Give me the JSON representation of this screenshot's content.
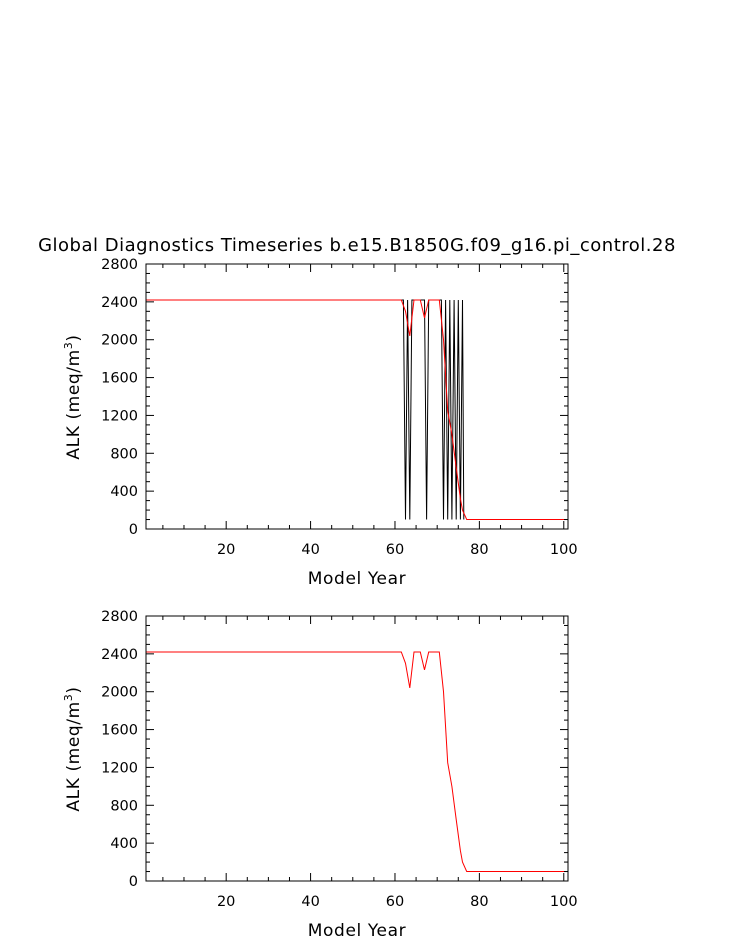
{
  "colors": {
    "background": "#ffffff",
    "axis": "#000000",
    "series_black": "#000000",
    "series_red": "#ff0000"
  },
  "chart_data": [
    {
      "type": "line",
      "title": "Global Diagnostics Timeseries b.e15.B1850G.f09_g16.pi_control.28",
      "xlabel": "Model Year",
      "ylabel": "ALK (meq/m",
      "ylabel_sup": "3",
      "ylabel_end": ")",
      "xlim": [
        1,
        101
      ],
      "ylim": [
        0,
        2800
      ],
      "xticks": [
        20,
        40,
        60,
        80,
        100
      ],
      "yticks": [
        0,
        400,
        800,
        1200,
        1600,
        2000,
        2400,
        2800
      ],
      "x_minor_step": 5,
      "y_minor_step": 100,
      "grid": false,
      "series": [
        {
          "color": "#000000",
          "x": [
            1,
            61.5,
            62,
            62.5,
            63,
            63.5,
            64,
            64.5,
            65,
            66,
            66.5,
            67,
            67.5,
            68,
            71,
            71.5,
            72,
            72.5,
            73,
            73.5,
            74,
            74.5,
            75,
            75.5,
            76,
            76.3
          ],
          "y": [
            2420,
            2420,
            2420,
            100,
            2420,
            100,
            2420,
            2420,
            2420,
            2420,
            2420,
            2420,
            100,
            2420,
            2420,
            100,
            2420,
            100,
            2420,
            100,
            2420,
            100,
            2420,
            100,
            2420,
            100
          ]
        },
        {
          "color": "#ff0000",
          "x": [
            1,
            61.5,
            62.5,
            63.5,
            64.5,
            66,
            67,
            68,
            69,
            70.5,
            71.5,
            72.5,
            73.5,
            74.5,
            75.5,
            76,
            77,
            100.5
          ],
          "y": [
            2420,
            2420,
            2300,
            2040,
            2420,
            2420,
            2230,
            2420,
            2420,
            2420,
            2000,
            1250,
            1000,
            650,
            320,
            200,
            100,
            100
          ]
        }
      ]
    },
    {
      "type": "line",
      "title": "",
      "xlabel": "Model Year",
      "ylabel": "ALK (meq/m",
      "ylabel_sup": "3",
      "ylabel_end": ")",
      "xlim": [
        1,
        101
      ],
      "ylim": [
        0,
        2800
      ],
      "xticks": [
        20,
        40,
        60,
        80,
        100
      ],
      "yticks": [
        0,
        400,
        800,
        1200,
        1600,
        2000,
        2400,
        2800
      ],
      "x_minor_step": 5,
      "y_minor_step": 100,
      "grid": false,
      "series": [
        {
          "color": "#ff0000",
          "x": [
            1,
            61.5,
            62.5,
            63.5,
            64.5,
            66,
            67,
            68,
            69,
            70.5,
            71.5,
            72.5,
            73.5,
            74.5,
            75.5,
            76,
            77,
            100.5
          ],
          "y": [
            2420,
            2420,
            2300,
            2040,
            2420,
            2420,
            2230,
            2420,
            2420,
            2420,
            2000,
            1250,
            1000,
            650,
            320,
            200,
            100,
            100
          ]
        }
      ]
    }
  ]
}
